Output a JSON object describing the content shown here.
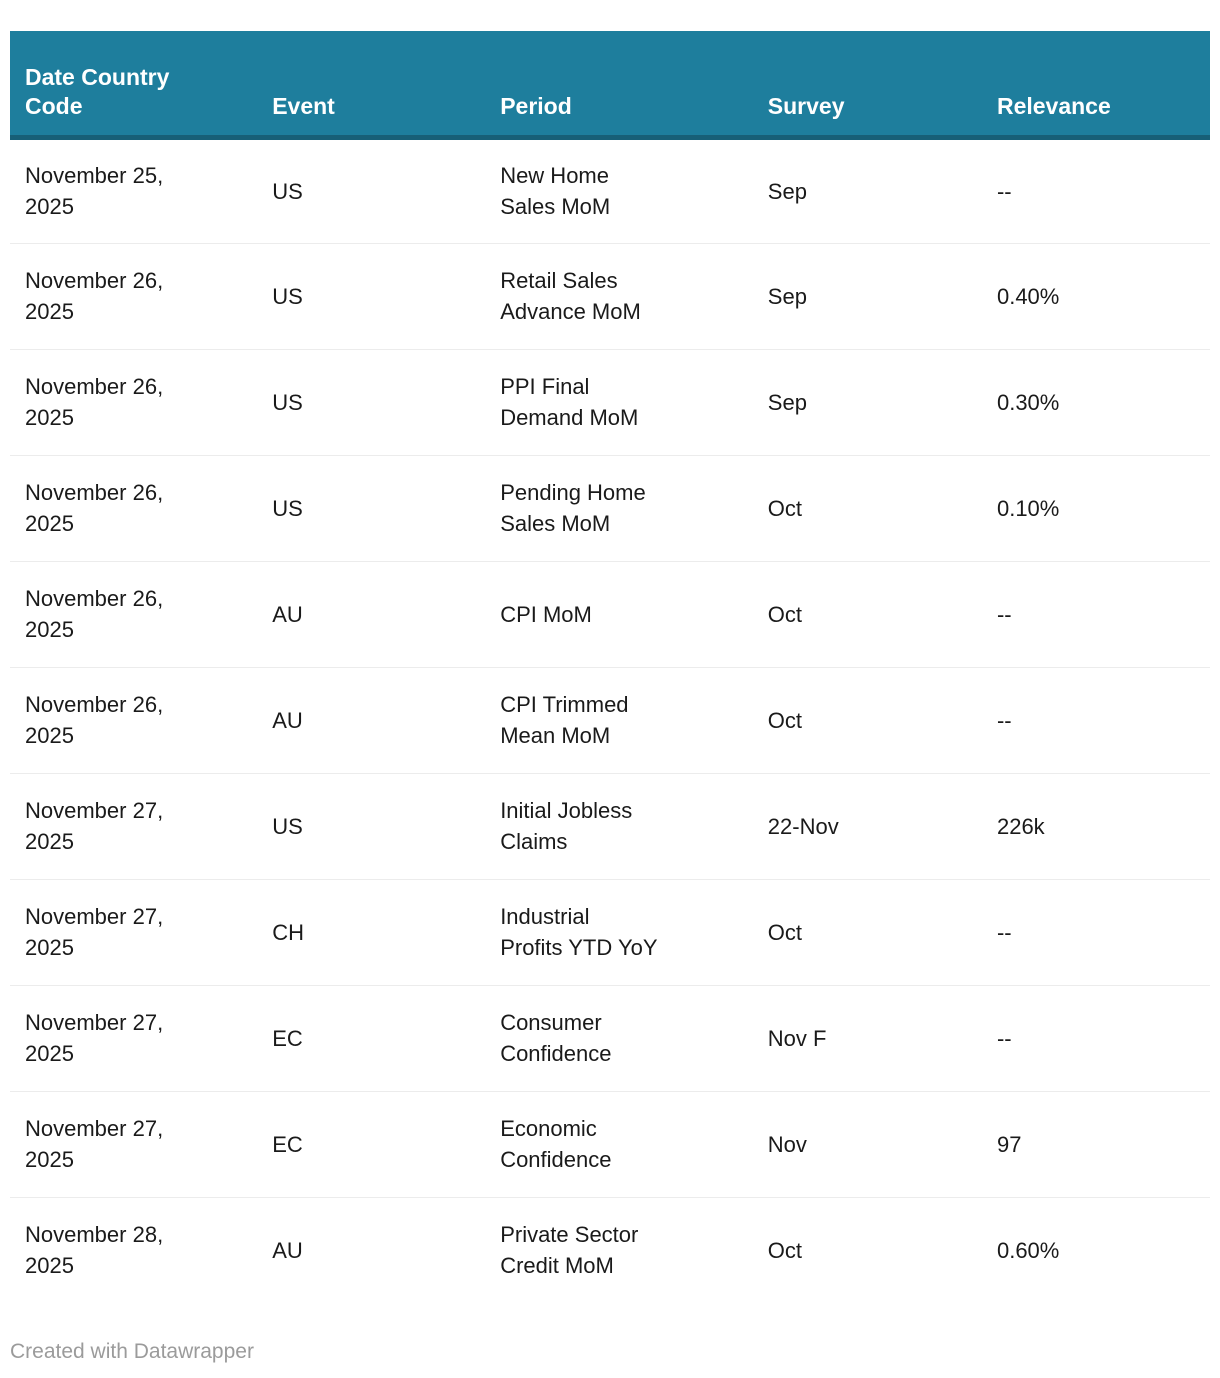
{
  "colors": {
    "header_bg": "#1e7e9d",
    "header_border": "#175f77",
    "row_divider": "#ececec",
    "text": "#1a1a1a",
    "header_text": "#ffffff",
    "muted": "#9b9b9b",
    "page_bg": "#ffffff"
  },
  "table": {
    "columns": [
      "Date Country\nCode",
      "Event",
      "Period",
      "Survey",
      "Relevance"
    ],
    "rows": [
      [
        "November 25,\n2025",
        "US",
        "New Home\nSales MoM",
        "Sep",
        "--"
      ],
      [
        "November 26,\n2025",
        "US",
        "Retail Sales\nAdvance MoM",
        "Sep",
        "0.40%"
      ],
      [
        "November 26,\n2025",
        "US",
        "PPI Final\nDemand MoM",
        "Sep",
        "0.30%"
      ],
      [
        "November 26,\n2025",
        "US",
        "Pending Home\nSales MoM",
        "Oct",
        "0.10%"
      ],
      [
        "November 26,\n2025",
        "AU",
        "CPI MoM",
        "Oct",
        "--"
      ],
      [
        "November 26,\n2025",
        "AU",
        "CPI Trimmed\nMean MoM",
        "Oct",
        "--"
      ],
      [
        "November 27,\n2025",
        "US",
        "Initial Jobless\nClaims",
        "22-Nov",
        "226k"
      ],
      [
        "November 27,\n2025",
        "CH",
        "Industrial\nProfits YTD YoY",
        "Oct",
        "--"
      ],
      [
        "November 27,\n2025",
        "EC",
        "Consumer\nConfidence",
        "Nov F",
        "--"
      ],
      [
        "November 27,\n2025",
        "EC",
        "Economic\nConfidence",
        "Nov",
        "97"
      ],
      [
        "November 28,\n2025",
        "AU",
        "Private Sector\nCredit MoM",
        "Oct",
        "0.60%"
      ]
    ]
  },
  "chart_data": {
    "type": "table",
    "columns": [
      "Date Country Code",
      "Event",
      "Period",
      "Survey",
      "Relevance"
    ],
    "rows": [
      [
        "November 25, 2025",
        "US",
        "New Home Sales MoM",
        "Sep",
        "--"
      ],
      [
        "November 26, 2025",
        "US",
        "Retail Sales Advance MoM",
        "Sep",
        "0.40%"
      ],
      [
        "November 26, 2025",
        "US",
        "PPI Final Demand MoM",
        "Sep",
        "0.30%"
      ],
      [
        "November 26, 2025",
        "US",
        "Pending Home Sales MoM",
        "Oct",
        "0.10%"
      ],
      [
        "November 26, 2025",
        "AU",
        "CPI MoM",
        "Oct",
        "--"
      ],
      [
        "November 26, 2025",
        "AU",
        "CPI Trimmed Mean MoM",
        "Oct",
        "--"
      ],
      [
        "November 27, 2025",
        "US",
        "Initial Jobless Claims",
        "22-Nov",
        "226k"
      ],
      [
        "November 27, 2025",
        "CH",
        "Industrial Profits YTD YoY",
        "Oct",
        "--"
      ],
      [
        "November 27, 2025",
        "EC",
        "Consumer Confidence",
        "Nov F",
        "--"
      ],
      [
        "November 27, 2025",
        "EC",
        "Economic Confidence",
        "Nov",
        "97"
      ],
      [
        "November 28, 2025",
        "AU",
        "Private Sector Credit MoM",
        "Oct",
        "0.60%"
      ]
    ],
    "title": "",
    "legend_position": "none",
    "grid": "row-dividers-only"
  },
  "footer": {
    "credit": "Created with Datawrapper"
  },
  "column_cell_names": [
    "date-country-code",
    "event",
    "period",
    "survey",
    "relevance"
  ]
}
